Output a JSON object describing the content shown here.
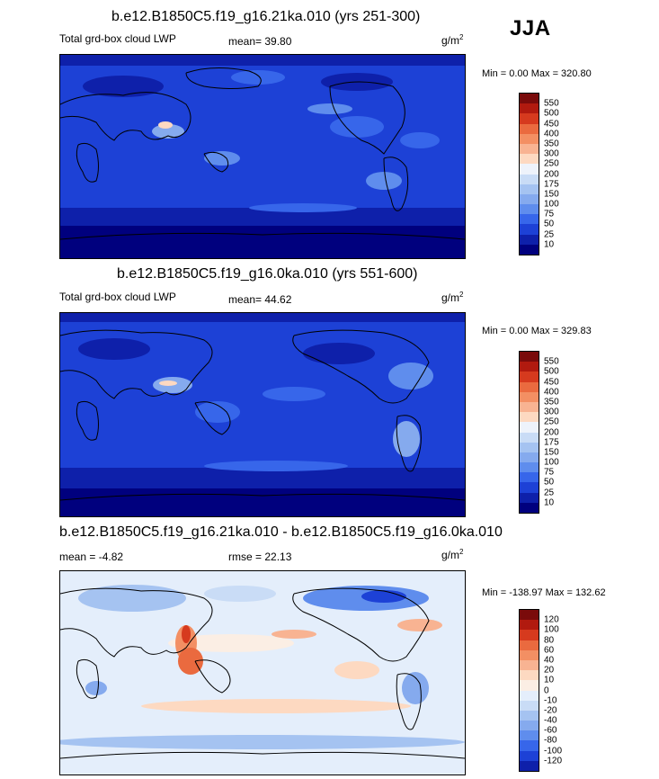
{
  "season": "JJA",
  "units_base": "g/m",
  "units_exp": "2",
  "panels": [
    {
      "title": "b.e12.B1850C5.f19_g16.21ka.010 (yrs 251-300)",
      "left_label": "Total grd-box cloud LWP",
      "mid_label": "mean=  39.80",
      "minmax": "Min =   0.00 Max = 320.80",
      "colorbar": {
        "labels": [
          "550",
          "500",
          "450",
          "400",
          "350",
          "300",
          "250",
          "200",
          "175",
          "150",
          "100",
          "75",
          "50",
          "25",
          "10"
        ],
        "colors": [
          "#7a0b0b",
          "#b11a0f",
          "#d63a1e",
          "#ea6a3f",
          "#f38f63",
          "#f8b392",
          "#fdd9c1",
          "#eef3fb",
          "#c9dcf6",
          "#a5c3f1",
          "#85aaee",
          "#5f8ded",
          "#3766ea",
          "#1d41d6",
          "#0e20aa",
          "#00007e"
        ]
      }
    },
    {
      "title": "b.e12.B1850C5.f19_g16.0ka.010 (yrs 551-600)",
      "left_label": "Total grd-box cloud LWP",
      "mid_label": "mean=  44.62",
      "minmax": "Min =   0.00 Max = 329.83",
      "colorbar": {
        "labels": [
          "550",
          "500",
          "450",
          "400",
          "350",
          "300",
          "250",
          "200",
          "175",
          "150",
          "100",
          "75",
          "50",
          "25",
          "10"
        ],
        "colors": [
          "#7a0b0b",
          "#b11a0f",
          "#d63a1e",
          "#ea6a3f",
          "#f38f63",
          "#f8b392",
          "#fdd9c1",
          "#eef3fb",
          "#c9dcf6",
          "#a5c3f1",
          "#85aaee",
          "#5f8ded",
          "#3766ea",
          "#1d41d6",
          "#0e20aa",
          "#00007e"
        ]
      }
    },
    {
      "title": "b.e12.B1850C5.f19_g16.21ka.010 - b.e12.B1850C5.f19_g16.0ka.010",
      "left_label": "mean =  -4.82",
      "mid_label": "rmse =  22.13",
      "minmax": "Min = -138.97 Max = 132.62",
      "colorbar": {
        "labels": [
          "120",
          "100",
          "80",
          "60",
          "40",
          "20",
          "10",
          "0",
          "-10",
          "-20",
          "-40",
          "-60",
          "-80",
          "-100",
          "-120"
        ],
        "colors": [
          "#7a0b0b",
          "#b11a0f",
          "#d63a1e",
          "#ea6a3f",
          "#f38f63",
          "#f8b392",
          "#fdd9c1",
          "#fbeee4",
          "#e4eefb",
          "#c9dcf6",
          "#a5c3f1",
          "#85aaee",
          "#5f8ded",
          "#3766ea",
          "#1d41d6",
          "#0e20aa"
        ]
      }
    }
  ]
}
